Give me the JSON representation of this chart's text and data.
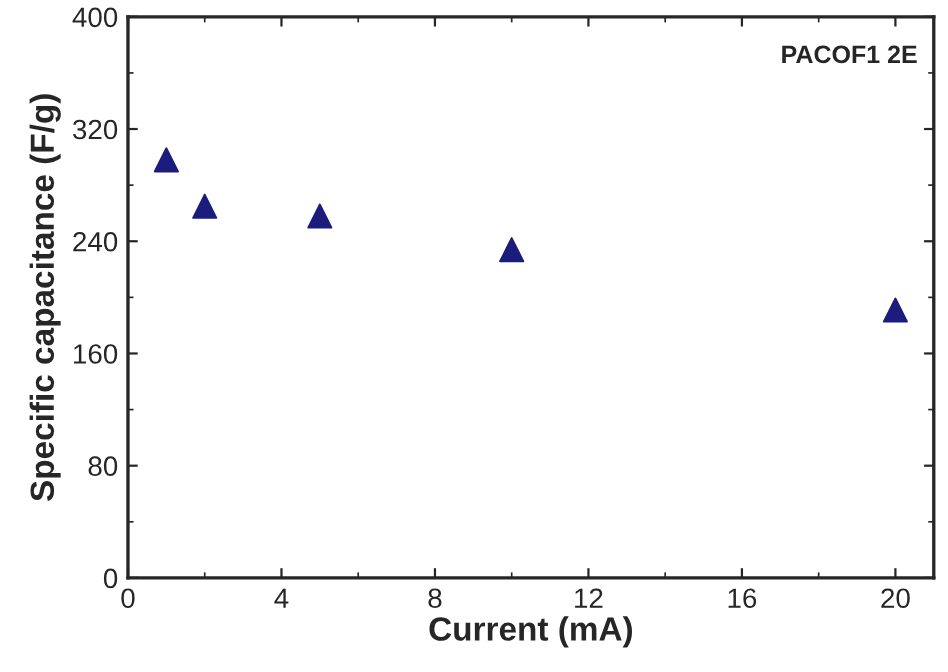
{
  "chart_data": {
    "type": "scatter",
    "xlabel": "Current (mA)",
    "ylabel": "Specific capacitance (F/g)",
    "annotations": [
      "PACOF1 2E"
    ],
    "x": [
      1,
      2,
      5,
      10,
      20
    ],
    "series": [
      {
        "color": "#1c1c7c",
        "values": [
          298,
          265,
          258,
          234,
          191
        ]
      }
    ],
    "marker": "triangle",
    "xlim": [
      0,
      21
    ],
    "ylim": [
      0,
      400
    ],
    "xticks": [
      0,
      4,
      8,
      12,
      16,
      20
    ],
    "yticks": [
      0,
      80,
      160,
      240,
      320,
      400
    ],
    "grid": false,
    "legend": false
  }
}
